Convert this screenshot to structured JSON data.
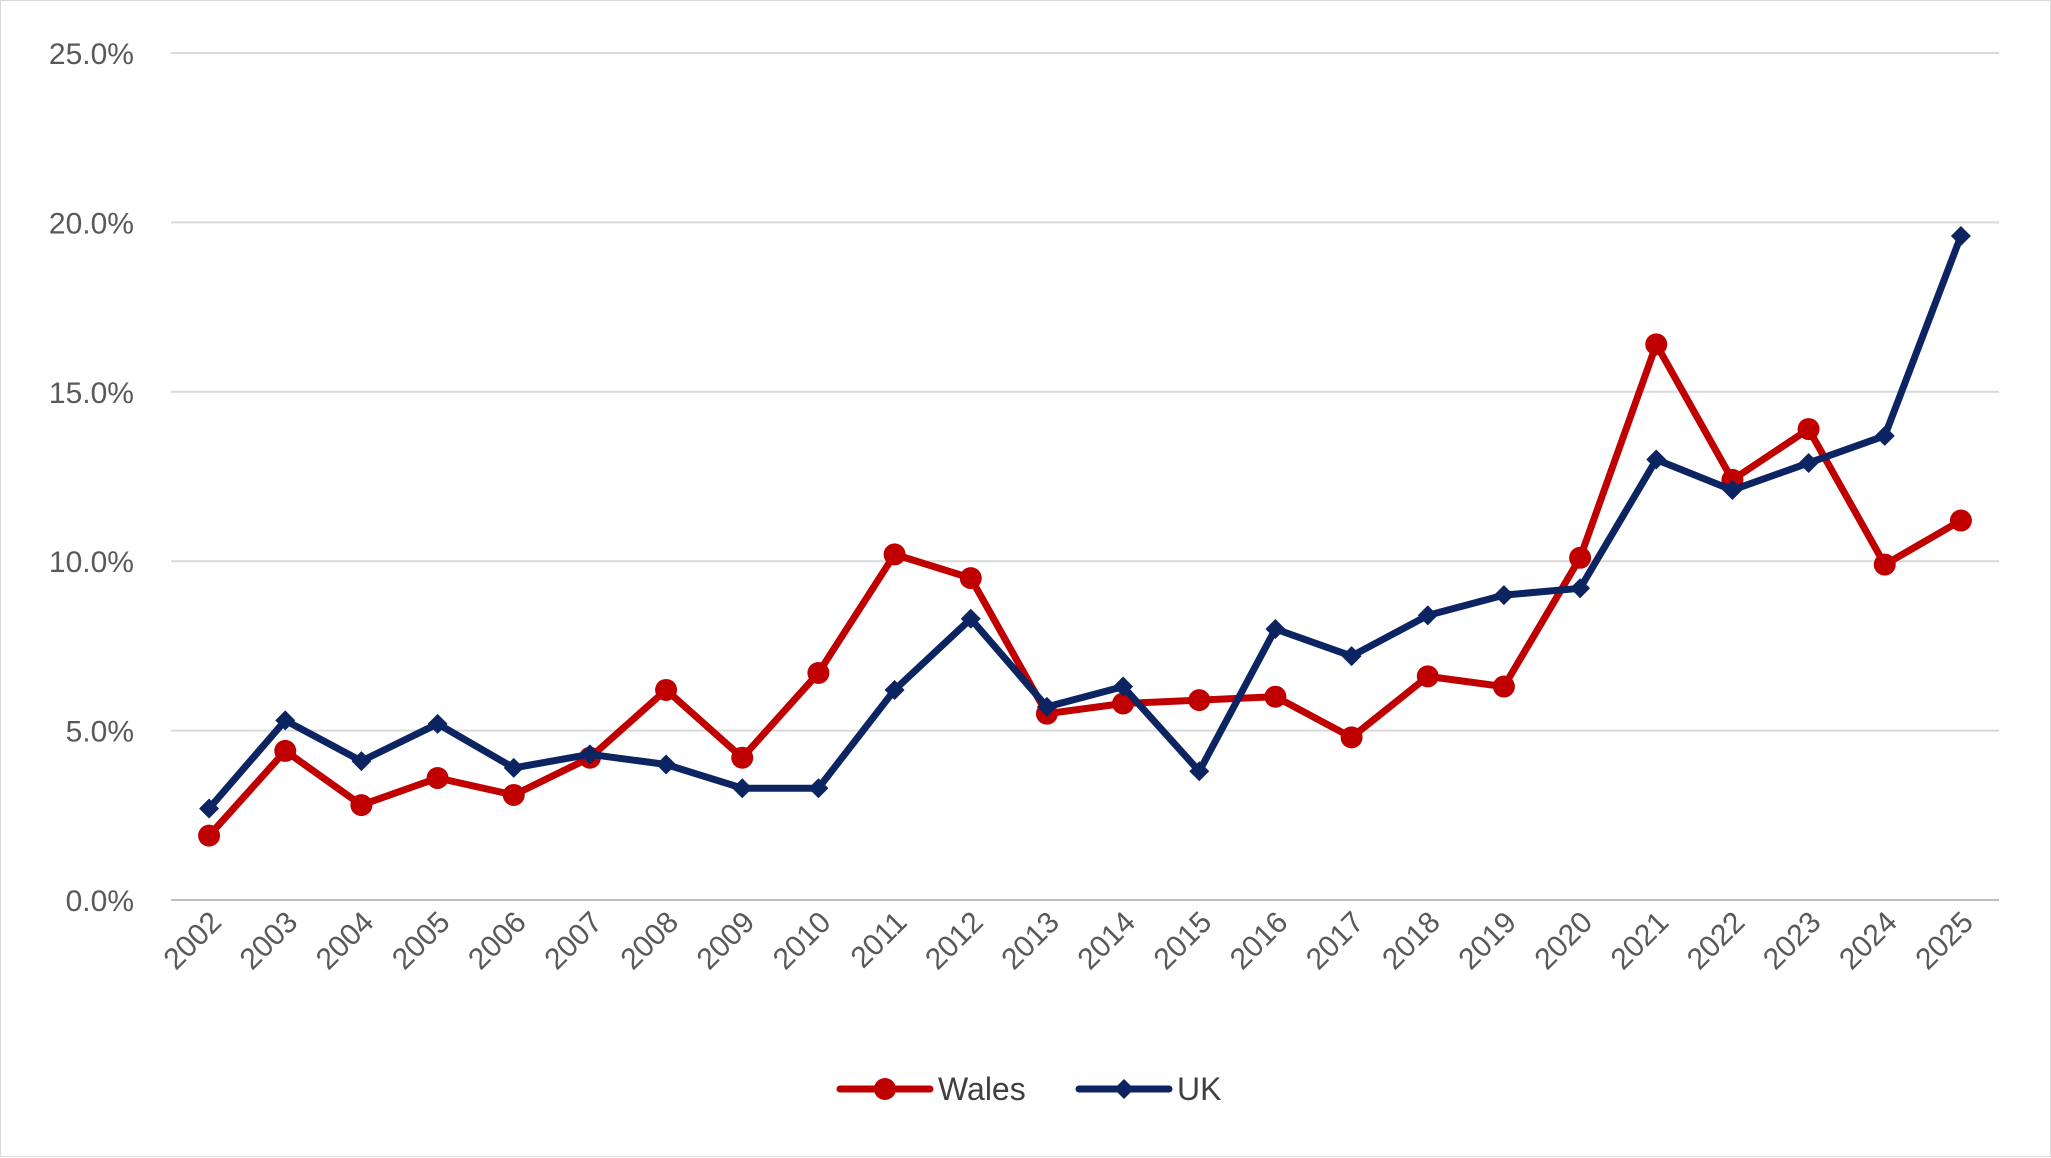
{
  "chart_data": {
    "type": "line",
    "title": "",
    "xlabel": "",
    "ylabel": "",
    "categories": [
      "2002",
      "2003",
      "2004",
      "2005",
      "2006",
      "2007",
      "2008",
      "2009",
      "2010",
      "2011",
      "2012",
      "2013",
      "2014",
      "2015",
      "2016",
      "2017",
      "2018",
      "2019",
      "2020",
      "2021",
      "2022",
      "2023",
      "2024",
      "2025"
    ],
    "y_ticks": [
      "0.0%",
      "5.0%",
      "10.0%",
      "15.0%",
      "20.0%",
      "25.0%"
    ],
    "ylim": [
      0,
      25
    ],
    "grid": "horizontal",
    "legend_position": "bottom",
    "series": [
      {
        "name": "Wales",
        "color": "#c00000",
        "marker": "circle",
        "values": [
          1.9,
          4.4,
          2.8,
          3.6,
          3.1,
          4.2,
          6.2,
          4.2,
          6.7,
          10.2,
          9.5,
          5.5,
          5.8,
          5.9,
          6.0,
          4.8,
          6.6,
          6.3,
          10.1,
          16.4,
          12.4,
          13.9,
          9.9,
          11.2
        ]
      },
      {
        "name": "UK",
        "color": "#0c2461",
        "marker": "diamond",
        "values": [
          2.7,
          5.3,
          4.1,
          5.2,
          3.9,
          4.3,
          4.0,
          3.3,
          3.3,
          6.2,
          8.3,
          5.7,
          6.3,
          3.8,
          8.0,
          7.2,
          8.4,
          9.0,
          9.2,
          13.0,
          12.1,
          12.9,
          13.7,
          19.6
        ]
      }
    ]
  }
}
